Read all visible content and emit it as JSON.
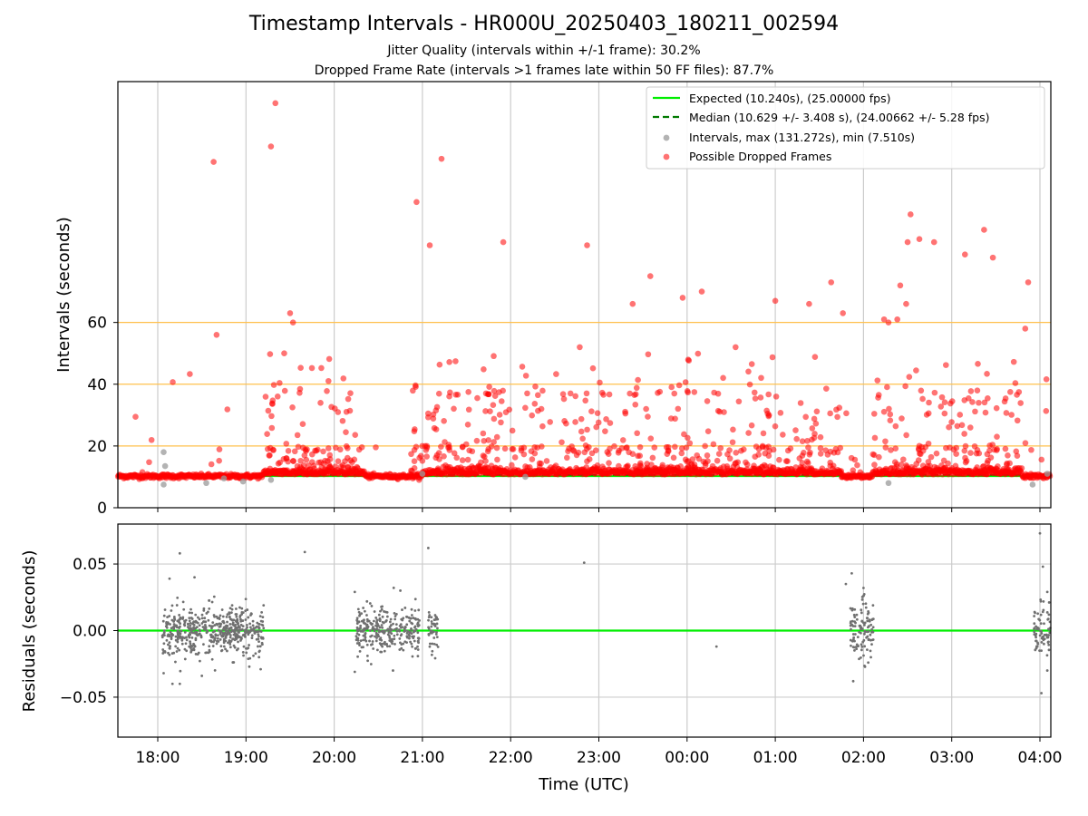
{
  "title": "Timestamp Intervals - HR000U_20250403_180211_002594",
  "subtitle_jitter": "Jitter Quality (intervals within +/-1 frame): 30.2%",
  "subtitle_dropped": "Dropped Frame Rate (intervals >1 frames late within 50 FF files): 87.7%",
  "colors": {
    "expected": "#00ee00",
    "median": "#007a00",
    "intervals": "#999999",
    "dropped": "#ff0000",
    "threshold": "#ffc04d",
    "grid": "#cccccc",
    "residual": "#707070"
  },
  "chart_data": [
    {
      "type": "scatter",
      "ylabel": "Intervals (seconds)",
      "ylim": [
        0,
        138
      ],
      "yticks": [
        0,
        20,
        40,
        60
      ],
      "hlines_threshold": [
        20,
        40,
        60
      ],
      "x_range": [
        "17:33",
        "04:07"
      ],
      "grid": "vertical",
      "legend": {
        "placement": "upper right",
        "entries": [
          "Expected (10.240s), (25.00000 fps)",
          "Median (10.629 +/- 3.408 s), (24.00662 +/- 5.28 fps)",
          "Intervals, max (131.272s), min (7.510s)",
          "Possible Dropped Frames"
        ]
      },
      "expected_interval": 10.24,
      "median_interval": 10.629,
      "outliers": [
        [
          "18:38",
          112
        ],
        [
          "19:17",
          117
        ],
        [
          "19:20",
          131
        ],
        [
          "19:30",
          63
        ],
        [
          "19:32",
          60
        ],
        [
          "18:40",
          56
        ],
        [
          "19:26",
          50
        ],
        [
          "21:13",
          113
        ],
        [
          "20:56",
          99
        ],
        [
          "21:05",
          85
        ],
        [
          "21:55",
          86
        ],
        [
          "22:52",
          85
        ],
        [
          "23:35",
          75
        ],
        [
          "23:23",
          66
        ],
        [
          "00:10",
          70
        ],
        [
          "23:57",
          68
        ],
        [
          "01:00",
          67
        ],
        [
          "01:23",
          66
        ],
        [
          "01:38",
          73
        ],
        [
          "01:46",
          63
        ],
        [
          "02:25",
          72
        ],
        [
          "02:23",
          61
        ],
        [
          "02:29",
          66
        ],
        [
          "02:32",
          95
        ],
        [
          "02:30",
          86
        ],
        [
          "02:38",
          87
        ],
        [
          "02:48",
          86
        ],
        [
          "03:09",
          82
        ],
        [
          "03:22",
          90
        ],
        [
          "03:28",
          81
        ],
        [
          "03:52",
          73
        ],
        [
          "03:50",
          58
        ],
        [
          "02:17",
          60
        ],
        [
          "02:14",
          61
        ],
        [
          "00:33",
          52
        ],
        [
          "22:47",
          52
        ]
      ],
      "gray_points": [
        [
          "18:04",
          18
        ],
        [
          "18:05",
          13.5
        ],
        [
          "18:04",
          7.5
        ],
        [
          "18:33",
          8
        ],
        [
          "18:45",
          9.5
        ],
        [
          "18:58",
          8.5
        ],
        [
          "19:17",
          9
        ],
        [
          "21:00",
          11
        ],
        [
          "22:10",
          10
        ],
        [
          "02:17",
          8
        ],
        [
          "03:55",
          7.5
        ],
        [
          "04:05",
          11
        ]
      ]
    },
    {
      "type": "scatter",
      "xlabel": "Time (UTC)",
      "ylabel": "Residuals (seconds)",
      "ylim": [
        -0.08,
        0.08
      ],
      "yticks": [
        "-0.05",
        "0.00",
        "0.05"
      ],
      "xticks": [
        "18:00",
        "19:00",
        "20:00",
        "21:00",
        "22:00",
        "23:00",
        "00:00",
        "01:00",
        "02:00",
        "03:00",
        "04:00"
      ],
      "zero_line": 0,
      "clusters": [
        {
          "start": "18:03",
          "end": "18:55",
          "spread": 0.009
        },
        {
          "start": "18:43",
          "end": "19:12",
          "spread": 0.009
        },
        {
          "start": "20:15",
          "end": "20:58",
          "spread": 0.009
        },
        {
          "start": "21:04",
          "end": "21:11",
          "spread": 0.009
        },
        {
          "start": "01:51",
          "end": "02:07",
          "spread": 0.011
        },
        {
          "start": "03:56",
          "end": "04:07",
          "spread": 0.01
        }
      ],
      "isolated": [
        [
          "18:15",
          0.058
        ],
        [
          "19:40",
          0.059
        ],
        [
          "21:04",
          0.062
        ],
        [
          "22:50",
          0.051
        ],
        [
          "00:20",
          -0.012
        ],
        [
          "04:00",
          0.073
        ],
        [
          "04:02",
          0.048
        ],
        [
          "04:01",
          -0.047
        ],
        [
          "18:04",
          -0.032
        ],
        [
          "18:10",
          -0.04
        ],
        [
          "18:15",
          -0.04
        ],
        [
          "18:30",
          -0.034
        ],
        [
          "20:14",
          -0.031
        ],
        [
          "20:40",
          -0.03
        ],
        [
          "20:14",
          0.029
        ],
        [
          "20:45",
          0.03
        ],
        [
          "01:53",
          -0.038
        ],
        [
          "01:52",
          0.043
        ],
        [
          "01:48",
          0.035
        ],
        [
          "02:00",
          0.032
        ],
        [
          "18:08",
          0.039
        ],
        [
          "18:25",
          0.04
        ],
        [
          "19:10",
          -0.029
        ],
        [
          "04:05",
          0.029
        ],
        [
          "04:05",
          -0.03
        ]
      ]
    }
  ]
}
